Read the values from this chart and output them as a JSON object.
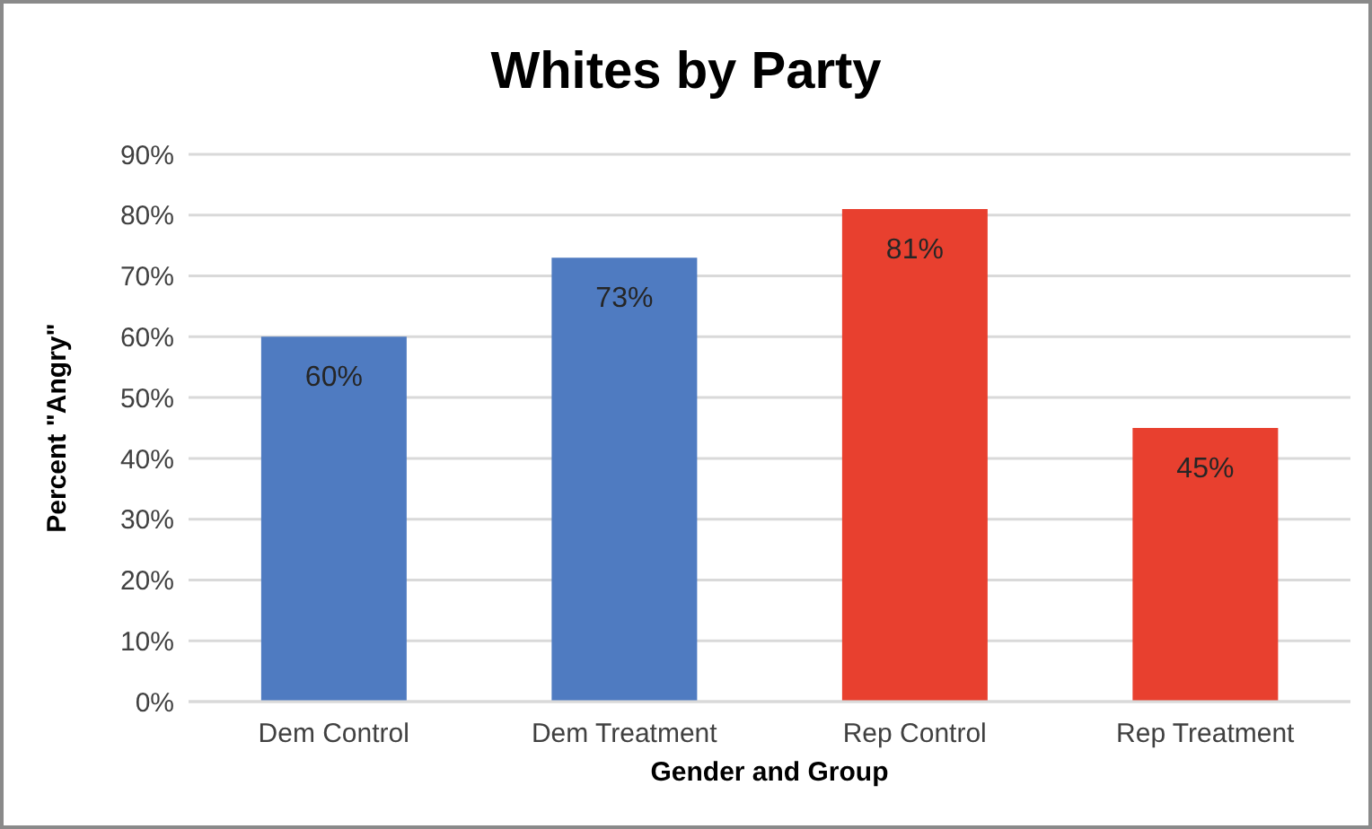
{
  "chart_data": {
    "type": "bar",
    "title": "Whites by Party",
    "xlabel": "Gender and Group",
    "ylabel": "Percent \"Angry\"",
    "categories": [
      "Dem Control",
      "Dem Treatment",
      "Rep Control",
      "Rep Treatment"
    ],
    "values": [
      60,
      73,
      81,
      45
    ],
    "colors": [
      "#4f7bc1",
      "#4f7bc1",
      "#e8402f",
      "#e8402f"
    ],
    "value_labels": [
      "60%",
      "73%",
      "81%",
      "45%"
    ],
    "ylim": [
      0,
      90
    ],
    "yticks": [
      {
        "value": 0,
        "label": "0%"
      },
      {
        "value": 10,
        "label": "10%"
      },
      {
        "value": 20,
        "label": "20%"
      },
      {
        "value": 30,
        "label": "30%"
      },
      {
        "value": 40,
        "label": "40%"
      },
      {
        "value": 50,
        "label": "50%"
      },
      {
        "value": 60,
        "label": "60%"
      },
      {
        "value": 70,
        "label": "70%"
      },
      {
        "value": 80,
        "label": "80%"
      },
      {
        "value": 90,
        "label": "90%"
      }
    ],
    "grid": "y"
  }
}
